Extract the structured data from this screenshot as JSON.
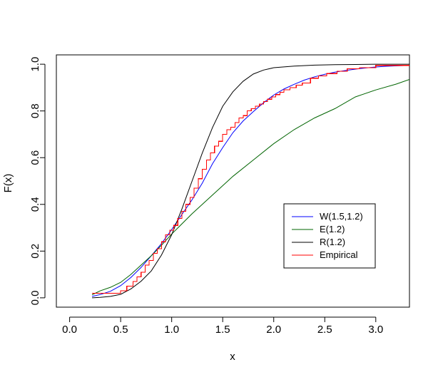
{
  "chart_data": {
    "type": "line",
    "title": "",
    "xlabel": "x",
    "ylabel": "F(x)",
    "xlim": [
      -0.13,
      3.33
    ],
    "ylim": [
      -0.04,
      1.04
    ],
    "xticks": [
      0,
      0.5,
      1,
      1.5,
      2,
      2.5,
      3
    ],
    "xtick_labels": [
      "0.0",
      "0.5",
      "1.0",
      "1.5",
      "2.0",
      "2.5",
      "3.0"
    ],
    "yticks": [
      0,
      0.2,
      0.4,
      0.6,
      0.8,
      1
    ],
    "ytick_labels": [
      "0.0",
      "0.2",
      "0.4",
      "0.6",
      "0.8",
      "1.0"
    ],
    "grid": false,
    "legend_position": "bottom-right",
    "series": [
      {
        "name": "W(1.5,1.2)",
        "kind": "line",
        "color": "#0000ff",
        "x": [
          0.22,
          0.3,
          0.4,
          0.5,
          0.6,
          0.7,
          0.8,
          0.9,
          1.0,
          1.1,
          1.2,
          1.3,
          1.4,
          1.5,
          1.6,
          1.7,
          1.8,
          1.9,
          2.0,
          2.1,
          2.2,
          2.3,
          2.4,
          2.5,
          2.6,
          2.7,
          2.8,
          2.9,
          3.0,
          3.1,
          3.2,
          3.33
        ],
        "y": [
          0.006,
          0.014,
          0.028,
          0.052,
          0.087,
          0.13,
          0.18,
          0.232,
          0.292,
          0.357,
          0.42,
          0.491,
          0.574,
          0.643,
          0.707,
          0.757,
          0.797,
          0.835,
          0.868,
          0.894,
          0.914,
          0.932,
          0.946,
          0.957,
          0.966,
          0.973,
          0.979,
          0.984,
          0.988,
          0.991,
          0.993,
          0.995
        ]
      },
      {
        "name": "E(1.2)",
        "kind": "line",
        "color": "#006400",
        "x": [
          0.22,
          0.3,
          0.4,
          0.5,
          0.6,
          0.7,
          0.8,
          0.9,
          1.0,
          1.2,
          1.4,
          1.6,
          1.8,
          2.0,
          2.2,
          2.4,
          2.6,
          2.8,
          3.0,
          3.2,
          3.33
        ],
        "y": [
          0.013,
          0.03,
          0.045,
          0.066,
          0.1,
          0.14,
          0.18,
          0.225,
          0.273,
          0.36,
          0.44,
          0.52,
          0.59,
          0.66,
          0.72,
          0.77,
          0.81,
          0.86,
          0.89,
          0.915,
          0.935
        ]
      },
      {
        "name": "R(1.2)",
        "kind": "line",
        "color": "#000000",
        "x": [
          0.22,
          0.3,
          0.4,
          0.5,
          0.6,
          0.7,
          0.8,
          0.9,
          1.0,
          1.1,
          1.2,
          1.3,
          1.4,
          1.5,
          1.6,
          1.7,
          1.8,
          1.9,
          2.0,
          2.2,
          2.4,
          2.6,
          2.8,
          3.0,
          3.33
        ],
        "y": [
          0.0,
          0.002,
          0.006,
          0.015,
          0.038,
          0.071,
          0.115,
          0.183,
          0.27,
          0.38,
          0.5,
          0.62,
          0.729,
          0.82,
          0.882,
          0.927,
          0.958,
          0.975,
          0.985,
          0.992,
          0.996,
          0.998,
          0.999,
          1.0,
          1.0
        ]
      },
      {
        "name": "Empirical",
        "kind": "step",
        "color": "#ff0000",
        "x": [
          0.22,
          0.5,
          0.56,
          0.62,
          0.66,
          0.7,
          0.74,
          0.78,
          0.82,
          0.86,
          0.9,
          0.94,
          0.98,
          1.02,
          1.06,
          1.1,
          1.14,
          1.18,
          1.22,
          1.26,
          1.3,
          1.34,
          1.38,
          1.42,
          1.46,
          1.5,
          1.54,
          1.58,
          1.62,
          1.66,
          1.7,
          1.74,
          1.78,
          1.82,
          1.86,
          1.9,
          1.94,
          1.98,
          2.02,
          2.06,
          2.1,
          2.16,
          2.22,
          2.28,
          2.36,
          2.44,
          2.52,
          2.62,
          2.72,
          2.84,
          3.0,
          3.33
        ],
        "y": [
          0.02,
          0.03,
          0.05,
          0.07,
          0.09,
          0.11,
          0.14,
          0.16,
          0.19,
          0.21,
          0.24,
          0.27,
          0.29,
          0.31,
          0.34,
          0.37,
          0.4,
          0.43,
          0.47,
          0.51,
          0.55,
          0.59,
          0.62,
          0.65,
          0.67,
          0.7,
          0.72,
          0.73,
          0.75,
          0.77,
          0.78,
          0.8,
          0.81,
          0.82,
          0.83,
          0.84,
          0.85,
          0.86,
          0.87,
          0.88,
          0.89,
          0.9,
          0.91,
          0.92,
          0.94,
          0.95,
          0.96,
          0.97,
          0.98,
          0.985,
          0.995,
          0.995
        ]
      }
    ]
  }
}
